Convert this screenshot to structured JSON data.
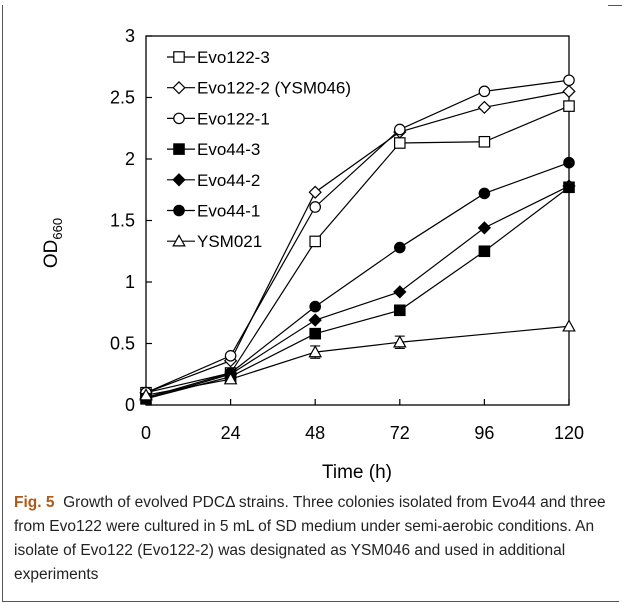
{
  "chart_data": {
    "type": "line",
    "xlabel": "Time (h)",
    "ylabel_main": "OD",
    "ylabel_sub": "660",
    "xlim": [
      0,
      120
    ],
    "ylim": [
      0,
      3
    ],
    "x": [
      0,
      24,
      48,
      72,
      96,
      120
    ],
    "xticks": [
      "0",
      "24",
      "48",
      "72",
      "96",
      "120"
    ],
    "yticks": [
      "0",
      "0.5",
      "1",
      "1.5",
      "2",
      "2.5",
      "3"
    ],
    "legend_position": "top-left",
    "series": [
      {
        "name": "Evo122-3",
        "marker": "square-open",
        "values": [
          0.1,
          0.26,
          1.33,
          2.13,
          2.14,
          2.43
        ]
      },
      {
        "name": "Evo122-2 (YSM046)",
        "marker": "diamond-open",
        "values": [
          0.1,
          0.36,
          1.73,
          2.22,
          2.42,
          2.55
        ]
      },
      {
        "name": "Evo122-1",
        "marker": "circle-open",
        "values": [
          0.1,
          0.4,
          1.61,
          2.24,
          2.55,
          2.64
        ]
      },
      {
        "name": "Evo44-3",
        "marker": "square-filled",
        "values": [
          0.05,
          0.23,
          0.58,
          0.77,
          1.25,
          1.77
        ]
      },
      {
        "name": "Evo44-2",
        "marker": "diamond-filled",
        "values": [
          0.05,
          0.25,
          0.69,
          0.92,
          1.44,
          1.78
        ]
      },
      {
        "name": "Evo44-1",
        "marker": "circle-filled",
        "values": [
          0.06,
          0.26,
          0.8,
          1.28,
          1.72,
          1.97
        ]
      },
      {
        "name": "YSM021",
        "marker": "triangle-open",
        "values": [
          0.08,
          0.21,
          0.43,
          0.51,
          null,
          0.64
        ],
        "errors": [
          0,
          0,
          0.05,
          0.05,
          null,
          0
        ]
      }
    ]
  },
  "caption": {
    "label": "Fig. 5",
    "text": "Growth of evolved PDCΔ strains. Three colonies isolated from Evo44 and three from Evo122 were cultured in 5 mL of SD medium under semi-aerobic conditions. An isolate of Evo122 (Evo122-2) was designated as YSM046 and used in additional experiments"
  }
}
